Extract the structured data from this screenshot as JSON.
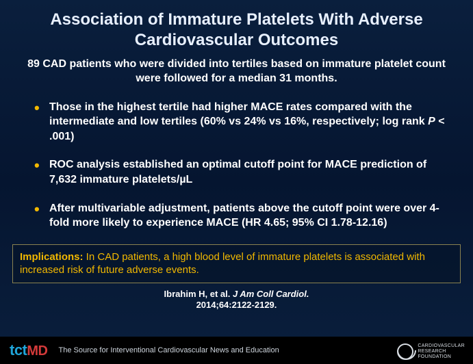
{
  "title": "Association of Immature Platelets With Adverse Cardiovascular Outcomes",
  "subtitle": "89 CAD patients who were divided into tertiles based on immature platelet count were followed for a median 31 months.",
  "bullets": [
    {
      "pre": "Those in the highest tertile had higher MACE rates compared with the intermediate and low tertiles (60% vs 24% vs 16%, respectively; log rank ",
      "ital": "P",
      "post": " < .001)"
    },
    {
      "pre": "ROC analysis established an optimal cutoff point for MACE prediction of 7,632 immature platelets/µL",
      "ital": "",
      "post": ""
    },
    {
      "pre": "After multivariable adjustment, patients above the cutoff point were over 4-fold more likely to experience MACE (HR 4.65; 95% CI 1.78-12.16)",
      "ital": "",
      "post": ""
    }
  ],
  "implications": {
    "label": "Implications:",
    "text": " In CAD patients, a high blood level of immature platelets is associated with increased risk of future adverse events."
  },
  "citation": {
    "pre": "Ibrahim H, et al. ",
    "ital": "J Am Coll Cardiol.",
    "post": " 2014;64:2122-2129."
  },
  "footer": {
    "logo_tct": "tct",
    "logo_md": "MD",
    "tagline": "The Source for Interventional Cardiovascular News and Education",
    "crf_line1": "Cardiovascular",
    "crf_line2": "Research",
    "crf_line3": "Foundation"
  },
  "colors": {
    "title": "#e8f0ff",
    "bullet_marker": "#f2b800",
    "implications": "#f2b800",
    "bg_top": "#0a1f3d"
  }
}
